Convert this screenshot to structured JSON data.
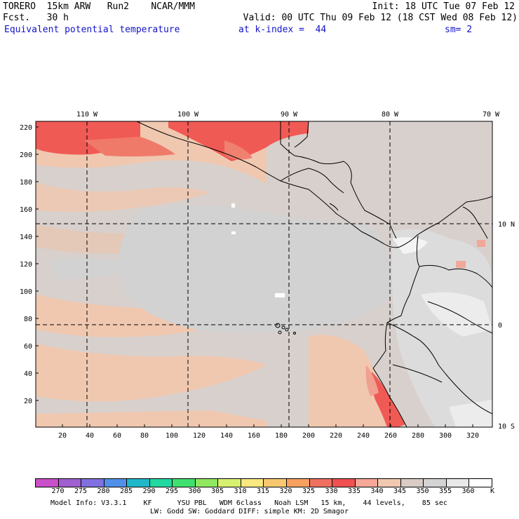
{
  "header": {
    "model": "TORERO  15km ARW   Run2    NCAR/MMM",
    "init": "Init: 18 UTC Tue 07 Feb 12",
    "fcst": "Fcst.   30 h",
    "valid": "Valid: 00 UTC Thu 09 Feb 12 (18 CST Wed 08 Feb 12)",
    "field": "Equivalent potential temperature",
    "kindex": "at k-index =  44",
    "sm": "sm= 2"
  },
  "map": {
    "top_lon_labels": [
      "110 W",
      "100 W",
      "90 W",
      "80 W",
      "70 W"
    ],
    "right_lat_labels": [
      "10 N",
      "0",
      "10 S"
    ],
    "y_ticks": [
      "220",
      "200",
      "180",
      "160",
      "140",
      "120",
      "100",
      "80",
      "60",
      "40",
      "20"
    ],
    "x_ticks": [
      "20",
      "40",
      "60",
      "80",
      "100",
      "120",
      "140",
      "160",
      "180",
      "200",
      "220",
      "240",
      "260",
      "280",
      "300",
      "320"
    ],
    "colors": {
      "land_line": "#000000",
      "grid_line": "#000000"
    }
  },
  "colorbar": {
    "labels": [
      "270",
      "275",
      "280",
      "285",
      "290",
      "295",
      "300",
      "305",
      "310",
      "315",
      "320",
      "325",
      "330",
      "335",
      "340",
      "345",
      "350",
      "355",
      "360"
    ],
    "unit": "K",
    "colors": [
      "#c850c8",
      "#a060d0",
      "#8070e0",
      "#5090e8",
      "#20b8c8",
      "#20d8a0",
      "#40e070",
      "#90e860",
      "#d8f070",
      "#f8e880",
      "#f8c870",
      "#f8a060",
      "#f07060",
      "#f05050",
      "#f8a898",
      "#f0c8b0",
      "#d8ccc4",
      "#d4d4d4",
      "#e8e8e8",
      "#ffffff"
    ]
  },
  "footer": {
    "line1": "Model Info: V3.3.1    KF      YSU PBL   WDM 6class   Noah LSM   15 km,    44 levels,    85 sec",
    "line2": "LW: Godd SW: Goddard DIFF: simple KM: 2D Smagor"
  }
}
